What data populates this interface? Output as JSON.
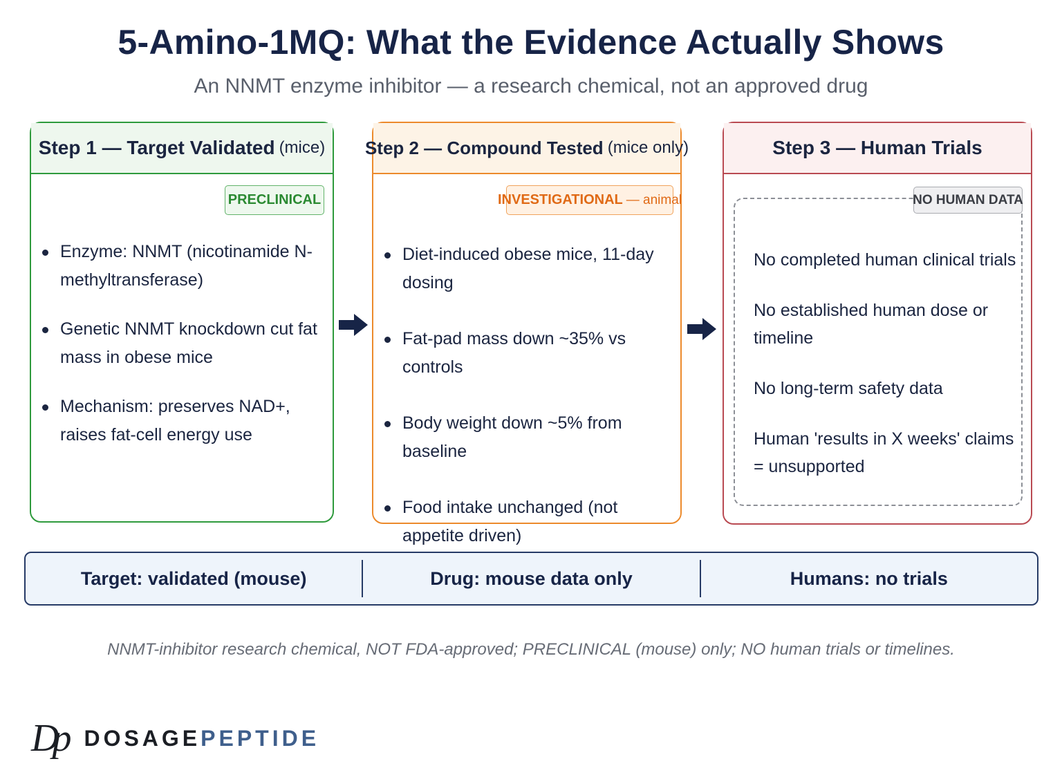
{
  "header": {
    "title": "5-Amino-1MQ: What the Evidence Actually Shows",
    "subtitle": "An NNMT enzyme inhibitor — a research chemical, not an approved drug"
  },
  "step1": {
    "title": "Step 1 — Target Validated",
    "title_paren": "(mice)",
    "badge": "PRECLINICAL",
    "bullets": [
      "Enzyme: NNMT (nicotinamide N-methyltransferase)",
      "Genetic NNMT knockdown cut fat mass in obese mice",
      "Mechanism: preserves NAD+, raises fat-cell energy use"
    ]
  },
  "step2": {
    "title": "Step 2 — Compound Tested",
    "title_paren": "(mice only)",
    "badge": "INVESTIGATIONAL",
    "badge_sub": "— animal",
    "bullets": [
      "Diet-induced obese mice, 11-day dosing",
      "Fat-pad mass down ~35% vs controls",
      "Body weight down ~5% from baseline",
      "Food intake unchanged (not appetite driven)"
    ]
  },
  "step3": {
    "title": "Step 3 — Human Trials",
    "badge": "NO HUMAN DATA",
    "items": [
      "No completed human clinical trials",
      "No established human dose or timeline",
      "No long-term safety data",
      "Human 'results in X weeks' claims = unsupported"
    ]
  },
  "summary": {
    "target": "Target: validated (mouse)",
    "drug": "Drug: mouse data only",
    "humans": "Humans: no trials"
  },
  "footnote": "NNMT-inhibitor research chemical, NOT FDA-approved; PRECLINICAL (mouse) only; NO human trials or timelines.",
  "brand": {
    "mark": "Dp",
    "name_part1": "DOSAGE",
    "name_part2": "PEPTIDE"
  },
  "colors": {
    "step1": "#2e9a3c",
    "step2": "#ec8a2c",
    "step3": "#b94a52",
    "navy": "#172447"
  },
  "icons": {
    "flow_arrow": "arrow-right-icon"
  }
}
